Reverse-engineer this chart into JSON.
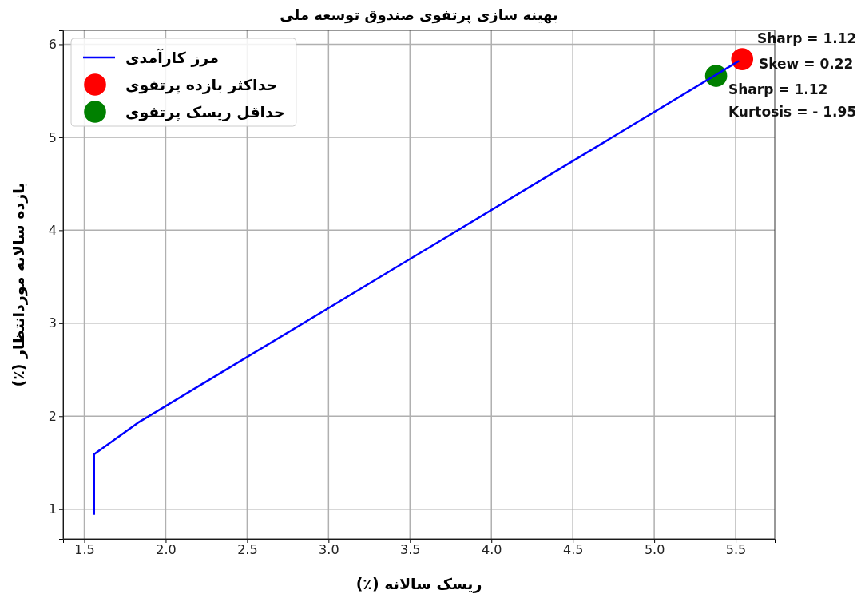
{
  "chart_data": {
    "type": "line",
    "title": "بهینه سازی پرتفوی صندوق توسعه ملی",
    "xlabel": "ریسک سالانه (٪)",
    "ylabel": "بازده سالانه موردانتظار (٪)",
    "xlim": [
      1.37,
      5.74
    ],
    "xticks": [
      1.5,
      {
        "value": 2,
        "label": "2.0"
      },
      2.5,
      {
        "value": 3,
        "label": "3.0"
      },
      3.5,
      {
        "value": 4,
        "label": "4.0"
      },
      4.5,
      {
        "value": 5,
        "label": "5.0"
      },
      5.5
    ],
    "ylim": [
      0.68,
      6.15
    ],
    "yticks": [
      1,
      2,
      3,
      4,
      5,
      6
    ],
    "grid": true,
    "legend": "top left",
    "series": [
      {
        "name": "مرز کارآمدی",
        "color": "#0000ff",
        "x": [
          1.56,
          1.56,
          1.83,
          5.52
        ],
        "values": [
          0.94,
          1.59,
          1.93,
          5.82
        ]
      },
      {
        "name": "حداکثر بازده پرتفوی",
        "type": "scatter",
        "marker": "circle",
        "color": "#ff0000",
        "x": [
          5.54
        ],
        "values": [
          5.84
        ]
      },
      {
        "name": "حداقل ریسک پرتفوی",
        "type": "scatter",
        "marker": "circle",
        "color": "#008000",
        "x": [
          5.38
        ],
        "values": [
          5.66
        ]
      }
    ],
    "annotations": [
      "Sharp =  1.12",
      "Skew = 0.22",
      "Sharp = 1.12",
      "Kurtosis = - 1.95"
    ]
  }
}
